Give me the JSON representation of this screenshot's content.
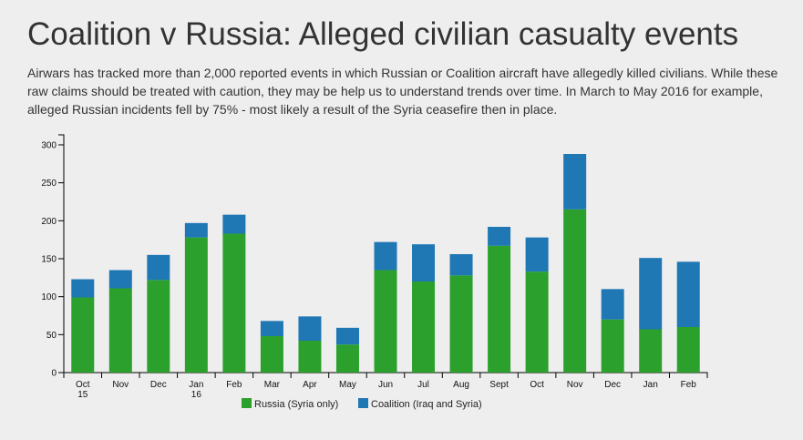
{
  "header": {
    "title": "Coalition v Russia: Alleged civilian casualty events",
    "subtitle": "Airwars has tracked more than 2,000 reported events in which Russian or Coalition aircraft have allegedly killed civilians. While these raw claims should be treated with caution, they may be help us to understand trends over time. In March to May 2016 for example, alleged Russian incidents fell by 75% - most likely a result of the Syria ceasefire then in place."
  },
  "chart_data": {
    "type": "bar",
    "stacked": true,
    "categories": [
      [
        "Oct",
        "15"
      ],
      [
        "Nov"
      ],
      [
        "Dec"
      ],
      [
        "Jan",
        "16"
      ],
      [
        "Feb"
      ],
      [
        "Mar"
      ],
      [
        "Apr"
      ],
      [
        "May"
      ],
      [
        "Jun"
      ],
      [
        "Jul"
      ],
      [
        "Aug"
      ],
      [
        "Sept"
      ],
      [
        "Oct"
      ],
      [
        "Nov"
      ],
      [
        "Dec"
      ],
      [
        "Jan"
      ],
      [
        "Feb"
      ]
    ],
    "series": [
      {
        "name": "Russia (Syria only)",
        "color": "#2ca02c",
        "values": [
          99,
          111,
          122,
          178,
          183,
          48,
          42,
          37,
          135,
          120,
          128,
          167,
          133,
          215,
          70,
          57,
          60
        ]
      },
      {
        "name": "Coalition (Iraq and Syria)",
        "color": "#1f77b4",
        "values": [
          24,
          24,
          33,
          19,
          25,
          20,
          32,
          22,
          37,
          49,
          28,
          25,
          45,
          73,
          40,
          94,
          86
        ]
      }
    ],
    "ylim": [
      0,
      300
    ],
    "yticks": [
      0,
      50,
      100,
      150,
      200,
      250,
      300
    ],
    "xlabel": "",
    "ylabel": "",
    "legend_position": "bottom-center"
  }
}
